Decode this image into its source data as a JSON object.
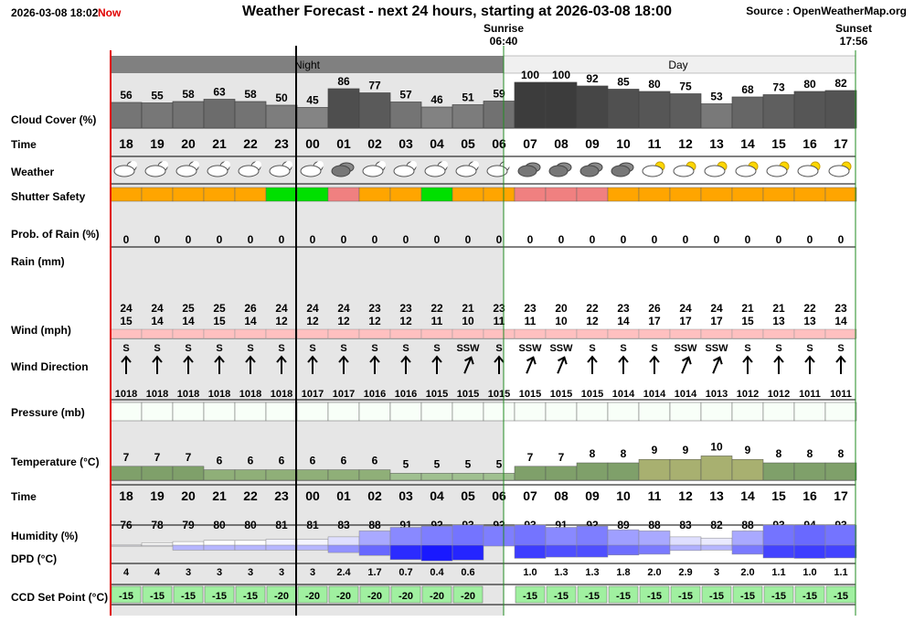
{
  "header": {
    "date": "2026-03-08 18:02",
    "now_label": "Now",
    "title": "Weather Forecast - next 24 hours, starting at 2026-03-08 18:00",
    "source": "Source : OpenWeatherMap.org"
  },
  "sunrise": {
    "label": "Sunrise",
    "time": "06:40"
  },
  "sunset": {
    "label": "Sunset",
    "time": "17:56"
  },
  "periods": {
    "night": "Night",
    "day": "Day"
  },
  "labels": {
    "cloud_cover": "Cloud Cover (%)",
    "time": "Time",
    "weather": "Weather",
    "shutter": "Shutter Safety",
    "prob_rain": "Prob. of Rain (%)",
    "rain": "Rain (mm)",
    "wind": "Wind (mph)",
    "wind_dir": "Wind Direction",
    "pressure": "Pressure (mb)",
    "temperature": "Temperature (°C)",
    "time2": "Time",
    "humidity": "Humidity (%)",
    "dpd": "DPD (°C)",
    "ccd": "CCD Set Point (°C)"
  },
  "colors": {
    "shutter_orange": "#ffa500",
    "shutter_green": "#00e000",
    "shutter_pink": "#f08080",
    "night_bg": "#e6e6e6",
    "ccd_green": "#a0f0a0",
    "cloud_grey": "#a6a6a6",
    "wind_pink": "#ffc0c0",
    "temp_green": "#8faf78",
    "humidity_blue": "#6a6aff",
    "dpd_blue": "#1a1aff"
  },
  "chart_data": {
    "type": "table",
    "hours": [
      "18",
      "19",
      "20",
      "21",
      "22",
      "23",
      "00",
      "01",
      "02",
      "03",
      "04",
      "05",
      "06",
      "07",
      "08",
      "09",
      "10",
      "11",
      "12",
      "13",
      "14",
      "15",
      "16",
      "17"
    ],
    "cloud_cover": [
      56,
      55,
      58,
      63,
      58,
      50,
      45,
      86,
      77,
      57,
      46,
      51,
      59,
      100,
      100,
      92,
      85,
      80,
      75,
      53,
      68,
      73,
      80,
      82
    ],
    "weather_icons": [
      "partly-cloudy-night",
      "partly-cloudy-night",
      "partly-cloudy-night",
      "partly-cloudy-night",
      "partly-cloudy-night",
      "partly-cloudy-night",
      "partly-cloudy-night",
      "overcast",
      "partly-cloudy-night",
      "partly-cloudy-night",
      "partly-cloudy-night",
      "partly-cloudy-night",
      "partly-cloudy-night",
      "overcast",
      "overcast",
      "overcast",
      "overcast",
      "partly-cloudy-day",
      "partly-cloudy-day",
      "partly-cloudy-day",
      "partly-cloudy-day",
      "partly-cloudy-day",
      "partly-cloudy-day",
      "partly-cloudy-day"
    ],
    "shutter_safety": [
      "orange",
      "orange",
      "orange",
      "orange",
      "orange",
      "green",
      "green",
      "pink",
      "orange",
      "orange",
      "green",
      "orange",
      "orange",
      "pink",
      "pink",
      "pink",
      "orange",
      "orange",
      "orange",
      "orange",
      "orange",
      "orange",
      "orange",
      "orange"
    ],
    "prob_rain": [
      0,
      0,
      0,
      0,
      0,
      0,
      0,
      0,
      0,
      0,
      0,
      0,
      0,
      0,
      0,
      0,
      0,
      0,
      0,
      0,
      0,
      0,
      0,
      0
    ],
    "wind_gust": [
      24,
      24,
      25,
      25,
      26,
      24,
      24,
      24,
      23,
      23,
      22,
      21,
      23,
      23,
      20,
      22,
      23,
      26,
      24,
      24,
      21,
      21,
      22,
      23
    ],
    "wind_speed": [
      15,
      14,
      14,
      15,
      14,
      12,
      12,
      12,
      12,
      12,
      11,
      10,
      11,
      11,
      10,
      12,
      14,
      17,
      17,
      17,
      15,
      13,
      13,
      14
    ],
    "wind_dir": [
      "S",
      "S",
      "S",
      "S",
      "S",
      "S",
      "S",
      "S",
      "S",
      "S",
      "S",
      "SSW",
      "S",
      "SSW",
      "SSW",
      "S",
      "S",
      "S",
      "SSW",
      "SSW",
      "S",
      "S",
      "S",
      "S"
    ],
    "pressure": [
      1018,
      1018,
      1018,
      1018,
      1018,
      1018,
      1017,
      1017,
      1016,
      1016,
      1015,
      1015,
      1015,
      1015,
      1015,
      1015,
      1014,
      1014,
      1014,
      1013,
      1012,
      1012,
      1011,
      1011
    ],
    "temperature": [
      7,
      7,
      7,
      6,
      6,
      6,
      6,
      6,
      6,
      5,
      5,
      5,
      5,
      7,
      7,
      8,
      8,
      9,
      9,
      10,
      9,
      8,
      8,
      8
    ],
    "humidity": [
      76,
      78,
      79,
      80,
      80,
      81,
      81,
      83,
      88,
      91,
      92,
      93,
      92,
      93,
      91,
      92,
      89,
      88,
      83,
      82,
      88,
      93,
      94,
      93
    ],
    "dpd": [
      "4",
      "4",
      "3",
      "3",
      "3",
      "3",
      "3",
      "2.4",
      "1.7",
      "0.7",
      "0.4",
      "0.6",
      "",
      "1.0",
      "1.3",
      "1.3",
      "1.8",
      "2.0",
      "2.9",
      "3",
      "2.0",
      "1.1",
      "1.0",
      "1.1"
    ],
    "ccd_set_point": [
      "-15",
      "-15",
      "-15",
      "-15",
      "-15",
      "-20",
      "-20",
      "-20",
      "-20",
      "-20",
      "-20",
      "-20",
      "",
      "-15",
      "-15",
      "-15",
      "-15",
      "-15",
      "-15",
      "-15",
      "-15",
      "-15",
      "-15",
      "-15"
    ]
  }
}
